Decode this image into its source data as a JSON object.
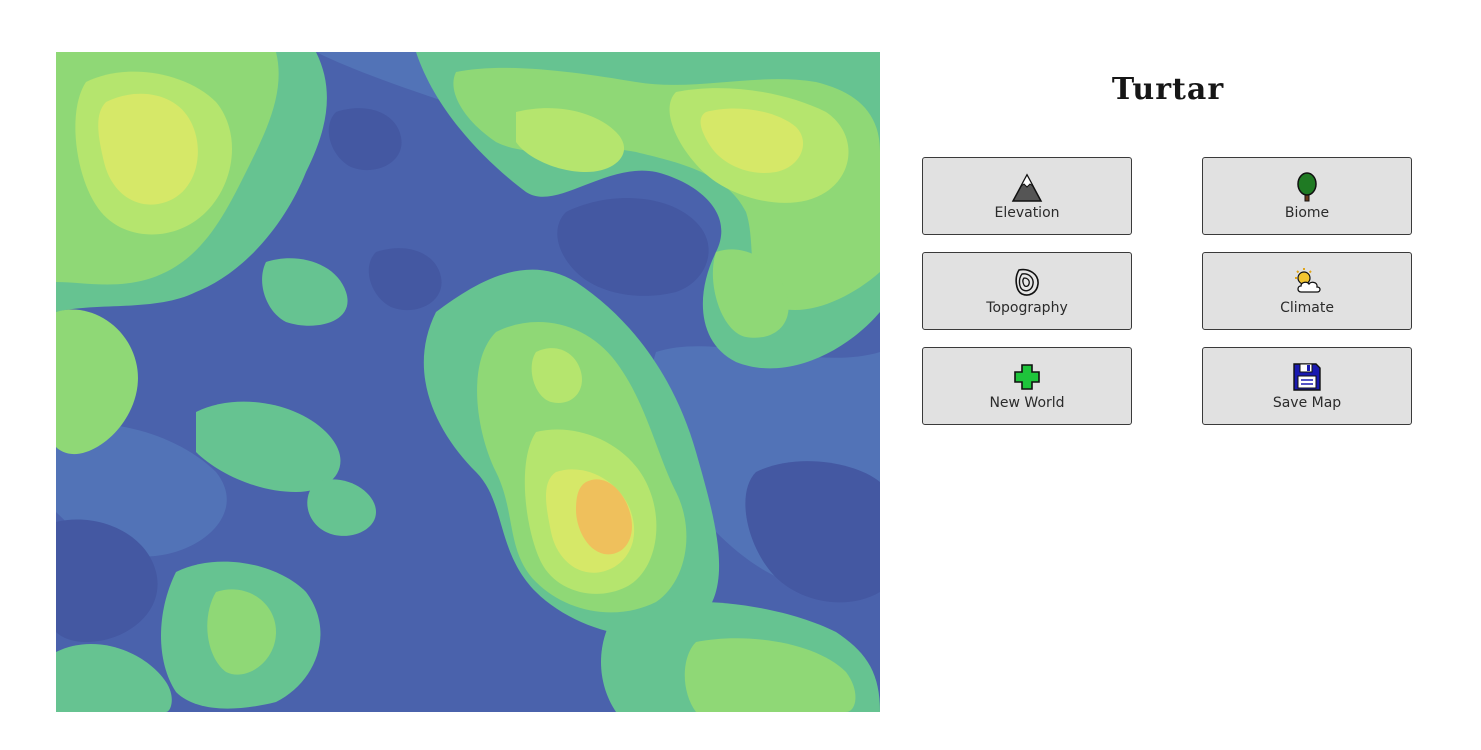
{
  "app": {
    "title": "Turtar"
  },
  "map": {
    "palette": [
      "#4a62ac",
      "#4f77b8",
      "#5b94c0",
      "#68c08f",
      "#8fd876",
      "#aae56f",
      "#cfe86a",
      "#f0c25b"
    ]
  },
  "buttons": {
    "elevation": {
      "label": "Elevation",
      "icon": "mountain-icon"
    },
    "biome": {
      "label": "Biome",
      "icon": "tree-icon"
    },
    "topography": {
      "label": "Topography",
      "icon": "contour-icon"
    },
    "climate": {
      "label": "Climate",
      "icon": "sun-cloud-icon"
    },
    "new_world": {
      "label": "New World",
      "icon": "plus-icon"
    },
    "save_map": {
      "label": "Save Map",
      "icon": "floppy-disk-icon"
    }
  }
}
